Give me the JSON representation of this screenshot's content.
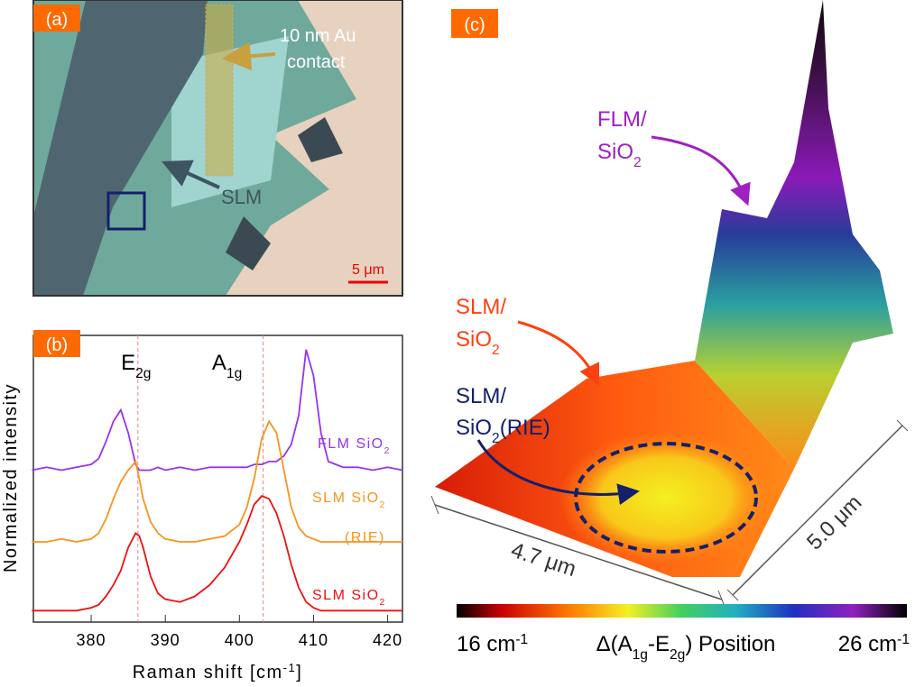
{
  "panel_a": {
    "label": "(a)",
    "contact_label": [
      "10 nm Au",
      "contact"
    ],
    "slm_label": "SLM",
    "scale_bar": "5 μm"
  },
  "chart_data": {
    "type": "line",
    "label": "(b)",
    "xlabel": "Raman shift [cm-1]",
    "ylabel": "Normalized intensity",
    "xlim": [
      372.2,
      422
    ],
    "xticks": [
      380,
      390,
      400,
      410,
      420
    ],
    "ylim": [
      0,
      10
    ],
    "x": [
      372,
      374,
      376,
      378,
      380,
      381,
      382,
      383,
      384,
      385,
      386,
      386.5,
      387,
      388,
      389,
      390,
      392,
      394,
      396,
      398,
      400,
      401,
      402,
      403,
      404,
      405,
      406,
      407,
      408,
      409,
      410,
      411,
      412,
      414,
      416,
      418,
      420,
      422
    ],
    "series": [
      {
        "name": "FLM SiO2",
        "color": "#9933ee",
        "values": [
          5.3,
          5.4,
          5.3,
          5.4,
          5.5,
          5.7,
          6.3,
          7.0,
          7.4,
          6.6,
          5.5,
          5.3,
          5.3,
          5.3,
          5.4,
          5.3,
          5.4,
          5.3,
          5.4,
          5.4,
          5.4,
          5.4,
          5.5,
          5.5,
          5.6,
          5.6,
          5.8,
          6.2,
          7.2,
          9.5,
          8.6,
          6.6,
          5.6,
          5.4,
          5.4,
          5.3,
          5.4,
          5.3
        ]
      },
      {
        "name": "SLM SiO2 (RIE)",
        "color": "#f7941d",
        "values": [
          2.8,
          2.8,
          2.9,
          2.8,
          2.9,
          3.1,
          3.6,
          4.3,
          4.9,
          5.3,
          5.6,
          5.0,
          4.3,
          3.5,
          3.1,
          2.9,
          2.8,
          2.8,
          2.9,
          3.0,
          3.4,
          4.0,
          5.0,
          6.4,
          7.0,
          6.6,
          5.3,
          4.0,
          3.3,
          3.0,
          2.9,
          2.8,
          2.8,
          2.8,
          2.8,
          2.8,
          2.8,
          2.8
        ]
      },
      {
        "name": "SLM SiO2",
        "color": "#ee1111",
        "values": [
          0.4,
          0.4,
          0.4,
          0.4,
          0.5,
          0.6,
          0.9,
          1.3,
          1.8,
          2.6,
          3.1,
          3.0,
          2.6,
          1.6,
          1.0,
          0.8,
          0.7,
          0.9,
          1.3,
          1.9,
          2.8,
          3.4,
          4.1,
          4.4,
          4.3,
          3.8,
          3.0,
          2.0,
          1.2,
          0.7,
          0.5,
          0.4,
          0.4,
          0.4,
          0.4,
          0.4,
          0.4,
          0.4
        ]
      }
    ],
    "reference_lines": [
      {
        "value": 386.3,
        "label": "E2g"
      },
      {
        "value": 403.2,
        "label": "A1g"
      }
    ]
  },
  "panel_c": {
    "label": "(c)",
    "annotations": [
      [
        "FLM/",
        "SiO2"
      ],
      [
        "SLM/",
        "SiO2"
      ],
      [
        "SLM/",
        "SiO2(RIE)"
      ]
    ],
    "x_extent": "4.7 μm",
    "y_extent": "5.0 μm",
    "colorbar": {
      "min_label": "16 cm-1",
      "title": "Δ(A1g-E2g) Position",
      "max_label": "26 cm-1"
    }
  }
}
